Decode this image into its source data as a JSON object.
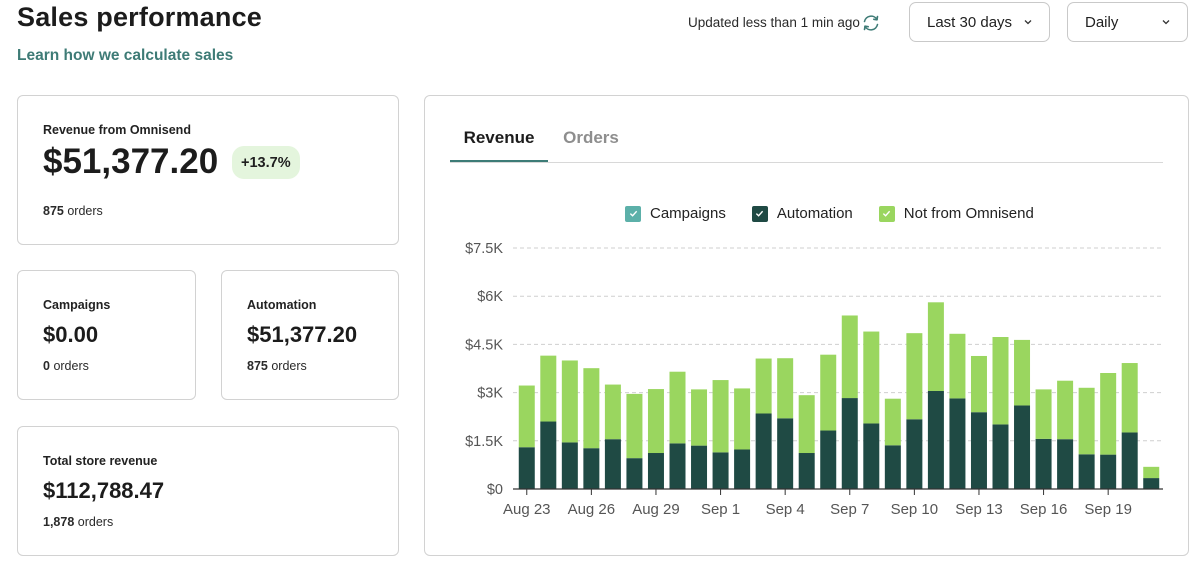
{
  "header": {
    "title": "Sales performance",
    "learn_link": "Learn how we calculate sales",
    "updated_text": "Updated less than 1 min ago",
    "range_select": "Last 30 days",
    "interval_select": "Daily"
  },
  "cards": {
    "revenue": {
      "label": "Revenue from Omnisend",
      "value": "$51,377.20",
      "change": "+13.7%",
      "orders_count": "875",
      "orders_word": "orders"
    },
    "campaigns": {
      "label": "Campaigns",
      "value": "$0.00",
      "orders_count": "0",
      "orders_word": "orders"
    },
    "automation": {
      "label": "Automation",
      "value": "$51,377.20",
      "orders_count": "875",
      "orders_word": "orders"
    },
    "total": {
      "label": "Total store revenue",
      "value": "$112,788.47",
      "orders_count": "1,878",
      "orders_word": "orders"
    }
  },
  "tabs": [
    {
      "label": "Revenue",
      "active": true
    },
    {
      "label": "Orders",
      "active": false
    }
  ],
  "colors": {
    "campaigns": "#5cb0a9",
    "automation": "#1f4a44",
    "not_from_omnisend": "#9ad65f",
    "accent": "#3e7b76",
    "badge_bg": "#e4f5dd"
  },
  "chart_data": {
    "type": "bar",
    "stacked": true,
    "legend": [
      "Campaigns",
      "Automation",
      "Not from Omnisend"
    ],
    "categories": [
      "Aug 23",
      "Aug 24",
      "Aug 25",
      "Aug 26",
      "Aug 27",
      "Aug 28",
      "Aug 29",
      "Aug 30",
      "Aug 31",
      "Sep 1",
      "Sep 2",
      "Sep 3",
      "Sep 4",
      "Sep 5",
      "Sep 6",
      "Sep 7",
      "Sep 8",
      "Sep 9",
      "Sep 10",
      "Sep 11",
      "Sep 12",
      "Sep 13",
      "Sep 14",
      "Sep 15",
      "Sep 16",
      "Sep 17",
      "Sep 18",
      "Sep 19",
      "Sep 20",
      "Sep 21"
    ],
    "x_tick_labels": [
      "Aug 23",
      "Aug 26",
      "Aug 29",
      "Sep 1",
      "Sep 4",
      "Sep 7",
      "Sep 10",
      "Sep 13",
      "Sep 16",
      "Sep 19"
    ],
    "y_tick_labels": [
      "$0",
      "$1.5K",
      "$3K",
      "$4.5K",
      "$6K",
      "$7.5K"
    ],
    "ylim": [
      0,
      7500
    ],
    "series": [
      {
        "name": "Campaigns",
        "values": [
          0,
          0,
          0,
          0,
          0,
          0,
          0,
          0,
          0,
          0,
          0,
          0,
          0,
          0,
          0,
          0,
          0,
          0,
          0,
          0,
          0,
          0,
          0,
          0,
          0,
          0,
          0,
          0,
          0,
          0
        ]
      },
      {
        "name": "Automation",
        "values": [
          1300,
          2100,
          1450,
          1270,
          1550,
          960,
          1120,
          1420,
          1350,
          1140,
          1230,
          2350,
          2200,
          1120,
          1820,
          2830,
          2040,
          1360,
          2170,
          3050,
          2820,
          2390,
          2010,
          2600,
          1560,
          1550,
          1080,
          1070,
          1760,
          340
        ]
      },
      {
        "name": "Not from Omnisend",
        "values": [
          1920,
          2050,
          2550,
          2490,
          1700,
          2000,
          1990,
          2230,
          1750,
          2250,
          1900,
          1710,
          1870,
          1800,
          2360,
          2570,
          2860,
          1450,
          2680,
          2760,
          2010,
          1750,
          2720,
          2040,
          1540,
          1820,
          2070,
          2540,
          2160,
          350
        ]
      }
    ]
  }
}
